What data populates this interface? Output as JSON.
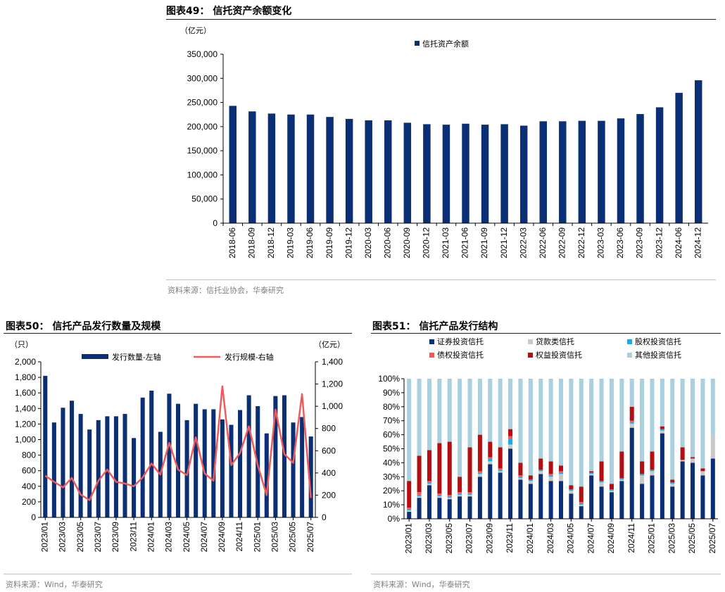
{
  "colors": {
    "navy": "#0b2f74",
    "red": "#ef5b5b",
    "darkred": "#b30f12",
    "gray": "#c9c9c9",
    "cyan": "#13aee6",
    "lightblue": "#a9d0dc"
  },
  "fig49": {
    "title": "图表49： 信托资产余额变化",
    "source": "资料来源：信托业协会，华泰研究",
    "chart_data": {
      "type": "bar",
      "unit": "（亿元）",
      "categories": [
        "2018-06",
        "2018-09",
        "2018-12",
        "2019-03",
        "2019-06",
        "2019-09",
        "2019-12",
        "2020-03",
        "2020-06",
        "2020-09",
        "2020-12",
        "2021-03",
        "2021-06",
        "2021-09",
        "2021-12",
        "2022-03",
        "2022-06",
        "2022-09",
        "2022-12",
        "2023-03",
        "2023-06",
        "2023-09",
        "2023-12",
        "2024-06",
        "2024-12"
      ],
      "series": [
        {
          "name": "信托资产余额",
          "values": [
            243000,
            231500,
            227000,
            225000,
            225000,
            220000,
            216000,
            213000,
            213000,
            208000,
            205000,
            204000,
            206000,
            204000,
            205000,
            202000,
            211000,
            211000,
            212000,
            212000,
            217000,
            226000,
            240000,
            270000,
            296000
          ]
        }
      ],
      "ylim": [
        0,
        350000
      ],
      "yticks": [
        0,
        50000,
        100000,
        150000,
        200000,
        250000,
        300000,
        350000
      ],
      "ytick_labels": [
        "0",
        "50,000",
        "100,000",
        "150,000",
        "200,000",
        "250,000",
        "300,000",
        "350,000"
      ],
      "legend": "top"
    }
  },
  "fig50": {
    "title": "图表50： 信托产品发行数量及规模",
    "source": "资料来源：Wind，华泰研究",
    "chart_data": {
      "type": "bar+line",
      "left_unit": "（只）",
      "right_unit": "（亿元）",
      "categories": [
        "2023/01",
        "2023/02",
        "2023/03",
        "2023/04",
        "2023/05",
        "2023/06",
        "2023/07",
        "2023/08",
        "2023/09",
        "2023/10",
        "2023/11",
        "2023/12",
        "2024/01",
        "2024/02",
        "2024/03",
        "2024/04",
        "2024/05",
        "2024/06",
        "2024/07",
        "2024/08",
        "2024/09",
        "2024/10",
        "2024/11",
        "2024/12",
        "2025/01",
        "2025/02",
        "2025/03",
        "2025/04",
        "2025/05",
        "2025/06",
        "2025/07"
      ],
      "xtick_labels": [
        "2023/01",
        "2023/03",
        "2023/05",
        "2023/07",
        "2023/09",
        "2023/11",
        "2024/01",
        "2024/03",
        "2024/05",
        "2024/07",
        "2024/09",
        "2024/11",
        "2025/01",
        "2025/03",
        "2025/05",
        "2025/07"
      ],
      "series": [
        {
          "name": "发行数量-左轴",
          "type": "bar",
          "axis": "left",
          "values": [
            1820,
            1220,
            1410,
            1500,
            1330,
            1130,
            1250,
            1300,
            1300,
            1330,
            1020,
            1540,
            1630,
            1100,
            1590,
            1460,
            1250,
            1460,
            1390,
            1390,
            1260,
            1190,
            1380,
            1570,
            1430,
            1080,
            1560,
            1570,
            1220,
            1290,
            1040
          ]
        },
        {
          "name": "发行规模-右轴",
          "type": "line",
          "axis": "right",
          "values": [
            375,
            320,
            270,
            355,
            205,
            155,
            330,
            430,
            320,
            305,
            280,
            360,
            485,
            385,
            670,
            430,
            380,
            720,
            395,
            330,
            1180,
            470,
            580,
            820,
            470,
            200,
            970,
            570,
            490,
            1110,
            175
          ]
        }
      ],
      "ylim_left": [
        0,
        2000
      ],
      "yticks_left": [
        0,
        200,
        400,
        600,
        800,
        1000,
        1200,
        1400,
        1600,
        1800,
        2000
      ],
      "ytick_labels_left": [
        "0",
        "200",
        "400",
        "600",
        "800",
        "1,000",
        "1,200",
        "1,400",
        "1,600",
        "1,800",
        "2,000"
      ],
      "ylim_right": [
        0,
        1400
      ],
      "yticks_right": [
        0,
        200,
        400,
        600,
        800,
        1000,
        1200,
        1400
      ],
      "ytick_labels_right": [
        "0",
        "200",
        "400",
        "600",
        "800",
        "1,000",
        "1,200",
        "1,400"
      ]
    }
  },
  "fig51": {
    "title": "图表51： 信托产品发行结构",
    "source": "资料来源：Wind，华泰研究",
    "chart_data": {
      "type": "stacked-bar-100",
      "categories": [
        "2023/01",
        "2023/02",
        "2023/03",
        "2023/04",
        "2023/05",
        "2023/06",
        "2023/07",
        "2023/08",
        "2023/09",
        "2023/10",
        "2023/11",
        "2023/12",
        "2024/01",
        "2024/02",
        "2024/03",
        "2024/04",
        "2024/05",
        "2024/06",
        "2024/07",
        "2024/08",
        "2024/09",
        "2024/10",
        "2024/11",
        "2024/12",
        "2025/01",
        "2025/02",
        "2025/03",
        "2025/04",
        "2025/05",
        "2025/06",
        "2025/07"
      ],
      "xtick_labels": [
        "2023/01",
        "2023/03",
        "2023/05",
        "2023/07",
        "2023/09",
        "2023/11",
        "2024/01",
        "2024/03",
        "2024/05",
        "2024/07",
        "2024/09",
        "2024/11",
        "2025/01",
        "2025/03",
        "2025/05",
        "2025/07"
      ],
      "series": [
        {
          "name": "证券投资信托",
          "values": [
            5,
            15,
            24,
            15,
            14,
            16,
            16,
            30,
            39,
            33,
            50,
            28,
            25,
            32,
            27,
            27,
            18,
            9,
            31,
            23,
            19,
            27,
            65,
            25,
            31,
            61,
            23,
            41,
            40,
            31,
            43
          ]
        },
        {
          "name": "贷款类信托",
          "values": [
            1,
            1,
            1,
            1,
            1,
            1,
            1,
            2,
            2,
            1,
            3,
            1,
            2,
            2,
            3,
            5,
            2,
            1,
            1,
            3,
            1,
            1,
            3,
            6,
            3,
            2,
            2,
            1,
            3,
            3,
            17
          ]
        },
        {
          "name": "股权投资信托",
          "values": [
            1,
            1,
            1,
            1,
            1,
            1,
            1,
            1,
            2,
            1,
            4,
            1,
            1,
            1,
            1,
            1,
            1,
            1,
            1,
            1,
            1,
            1,
            1,
            1,
            1,
            1,
            1,
            0,
            0,
            0,
            0
          ]
        },
        {
          "name": "债权投资信托",
          "values": [
            1,
            2,
            1,
            1,
            1,
            1,
            1,
            1,
            1,
            1,
            2,
            1,
            0,
            0,
            1,
            1,
            0,
            1,
            0,
            0,
            0,
            0,
            1,
            0,
            0,
            0,
            0,
            0,
            0,
            0,
            0
          ]
        },
        {
          "name": "权益投资信托",
          "values": [
            19,
            26,
            22,
            36,
            38,
            11,
            32,
            26,
            11,
            15,
            5,
            9,
            3,
            8,
            9,
            4,
            3,
            11,
            1,
            14,
            4,
            19,
            10,
            9,
            13,
            2,
            2,
            9,
            1,
            2,
            0
          ]
        },
        {
          "name": "其他投资信托",
          "values": [
            73,
            55,
            51,
            46,
            45,
            70,
            49,
            40,
            45,
            49,
            36,
            60,
            69,
            57,
            59,
            62,
            76,
            77,
            66,
            59,
            75,
            52,
            20,
            59,
            52,
            34,
            72,
            49,
            56,
            64,
            40
          ]
        }
      ],
      "ylim": [
        0,
        100
      ],
      "yticks": [
        0,
        10,
        20,
        30,
        40,
        50,
        60,
        70,
        80,
        90,
        100
      ],
      "ytick_labels": [
        "0%",
        "10%",
        "20%",
        "30%",
        "40%",
        "50%",
        "60%",
        "70%",
        "80%",
        "90%",
        "100%"
      ],
      "legend": "top, 2 rows x 3"
    }
  }
}
